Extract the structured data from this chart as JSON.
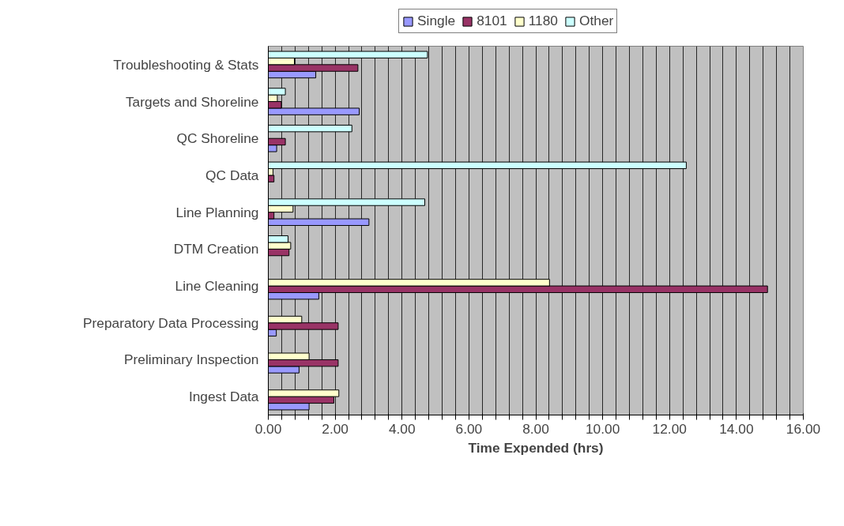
{
  "chart_data": {
    "type": "bar",
    "orientation": "horizontal",
    "xlabel": "Time Expended (hrs)",
    "categories": [
      "Troubleshooting & Stats",
      "Targets and Shoreline",
      "QC Shoreline",
      "QC Data",
      "Line Planning",
      "DTM Creation",
      "Line Cleaning",
      "Preparatory Data Processing",
      "Preliminary Inspection",
      "Ingest Data"
    ],
    "series": [
      {
        "name": "Single",
        "color": "#9999ff",
        "values": [
          1.42,
          2.72,
          0.25,
          null,
          3.01,
          null,
          1.51,
          0.24,
          0.92,
          1.22
        ]
      },
      {
        "name": "8101",
        "color": "#993366",
        "values": [
          2.68,
          0.39,
          0.51,
          0.17,
          0.17,
          0.62,
          14.93,
          2.09,
          2.09,
          1.96
        ]
      },
      {
        "name": "1180",
        "color": "#ffffcc",
        "values": [
          0.78,
          0.27,
          null,
          0.14,
          0.74,
          0.67,
          8.41,
          1.0,
          1.22,
          2.11
        ]
      },
      {
        "name": "Other",
        "color": "#ccffff",
        "values": [
          4.76,
          0.51,
          2.5,
          12.5,
          4.68,
          0.59,
          null,
          null,
          null,
          null
        ]
      }
    ],
    "xlim": [
      0,
      16
    ],
    "xticks": [
      {
        "value": 0,
        "label": "0.00"
      },
      {
        "value": 0.4,
        "label": null
      },
      {
        "value": 0.8,
        "label": null
      },
      {
        "value": 1.2,
        "label": null
      },
      {
        "value": 1.6,
        "label": null
      },
      {
        "value": 2,
        "label": "2.00"
      },
      {
        "value": 2.4,
        "label": null
      },
      {
        "value": 2.8,
        "label": null
      },
      {
        "value": 3.2,
        "label": null
      },
      {
        "value": 3.6,
        "label": null
      },
      {
        "value": 4,
        "label": "4.00"
      },
      {
        "value": 4.4,
        "label": null
      },
      {
        "value": 4.8,
        "label": null
      },
      {
        "value": 5.2,
        "label": null
      },
      {
        "value": 5.6,
        "label": null
      },
      {
        "value": 6,
        "label": "6.00"
      },
      {
        "value": 6.4,
        "label": null
      },
      {
        "value": 6.8,
        "label": null
      },
      {
        "value": 7.2,
        "label": null
      },
      {
        "value": 7.6,
        "label": null
      },
      {
        "value": 8,
        "label": "8.00"
      },
      {
        "value": 8.4,
        "label": null
      },
      {
        "value": 8.8,
        "label": null
      },
      {
        "value": 9.2,
        "label": null
      },
      {
        "value": 9.6,
        "label": null
      },
      {
        "value": 10,
        "label": "10.00"
      },
      {
        "value": 10.4,
        "label": null
      },
      {
        "value": 10.8,
        "label": null
      },
      {
        "value": 11.2,
        "label": null
      },
      {
        "value": 11.6,
        "label": null
      },
      {
        "value": 12,
        "label": "12.00"
      },
      {
        "value": 12.4,
        "label": null
      },
      {
        "value": 12.8,
        "label": null
      },
      {
        "value": 13.2,
        "label": null
      },
      {
        "value": 13.6,
        "label": null
      },
      {
        "value": 14,
        "label": "14.00"
      },
      {
        "value": 14.4,
        "label": null
      },
      {
        "value": 14.8,
        "label": null
      },
      {
        "value": 15.2,
        "label": null
      },
      {
        "value": 15.6,
        "label": null
      },
      {
        "value": 16,
        "label": "16.00"
      }
    ],
    "grid": "x",
    "legend": "top"
  }
}
